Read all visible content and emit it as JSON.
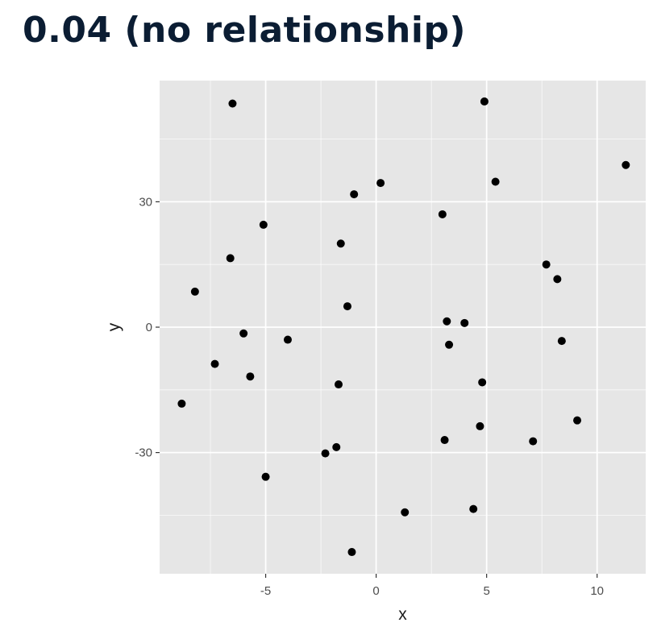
{
  "page": {
    "title": "0.04 (no relationship)"
  },
  "chart_data": {
    "type": "scatter",
    "title": "0.04 (no relationship)",
    "xlabel": "x",
    "ylabel": "y",
    "xlim": [
      -9.8,
      12.2
    ],
    "ylim": [
      -59,
      59
    ],
    "xticks": [
      -5,
      0,
      5,
      10
    ],
    "yticks": [
      -30,
      0,
      30
    ],
    "xtick_labels": [
      "-5",
      "0",
      "5",
      "10"
    ],
    "ytick_labels": [
      "-30",
      "0",
      "30"
    ],
    "grid": true,
    "background": "#e6e6e6",
    "grid_color": "#ffffff",
    "point_color": "#000000",
    "points": [
      {
        "x": -6.5,
        "y": 53.5
      },
      {
        "x": 4.9,
        "y": 54.0
      },
      {
        "x": 11.3,
        "y": 38.8
      },
      {
        "x": 0.2,
        "y": 34.5
      },
      {
        "x": 5.4,
        "y": 34.8
      },
      {
        "x": -1.0,
        "y": 31.8
      },
      {
        "x": 3.0,
        "y": 27.0
      },
      {
        "x": -5.1,
        "y": 24.5
      },
      {
        "x": -1.6,
        "y": 20.0
      },
      {
        "x": -6.6,
        "y": 16.5
      },
      {
        "x": 7.7,
        "y": 15.0
      },
      {
        "x": 8.2,
        "y": 11.5
      },
      {
        "x": -8.2,
        "y": 8.5
      },
      {
        "x": -1.3,
        "y": 5.0
      },
      {
        "x": 3.2,
        "y": 1.4
      },
      {
        "x": 4.0,
        "y": 1.0
      },
      {
        "x": -6.0,
        "y": -1.5
      },
      {
        "x": -4.0,
        "y": -3.0
      },
      {
        "x": 8.4,
        "y": -3.3
      },
      {
        "x": 3.3,
        "y": -4.2
      },
      {
        "x": -7.3,
        "y": -8.8
      },
      {
        "x": -5.7,
        "y": -11.8
      },
      {
        "x": -1.7,
        "y": -13.7
      },
      {
        "x": 4.8,
        "y": -13.2
      },
      {
        "x": -8.8,
        "y": -18.3
      },
      {
        "x": 9.1,
        "y": -22.3
      },
      {
        "x": 4.7,
        "y": -23.7
      },
      {
        "x": 3.1,
        "y": -27.0
      },
      {
        "x": 7.1,
        "y": -27.3
      },
      {
        "x": -1.8,
        "y": -28.7
      },
      {
        "x": -2.3,
        "y": -30.2
      },
      {
        "x": -5.0,
        "y": -35.8
      },
      {
        "x": 1.3,
        "y": -44.3
      },
      {
        "x": 4.4,
        "y": -43.5
      },
      {
        "x": -1.1,
        "y": -53.8
      }
    ]
  }
}
